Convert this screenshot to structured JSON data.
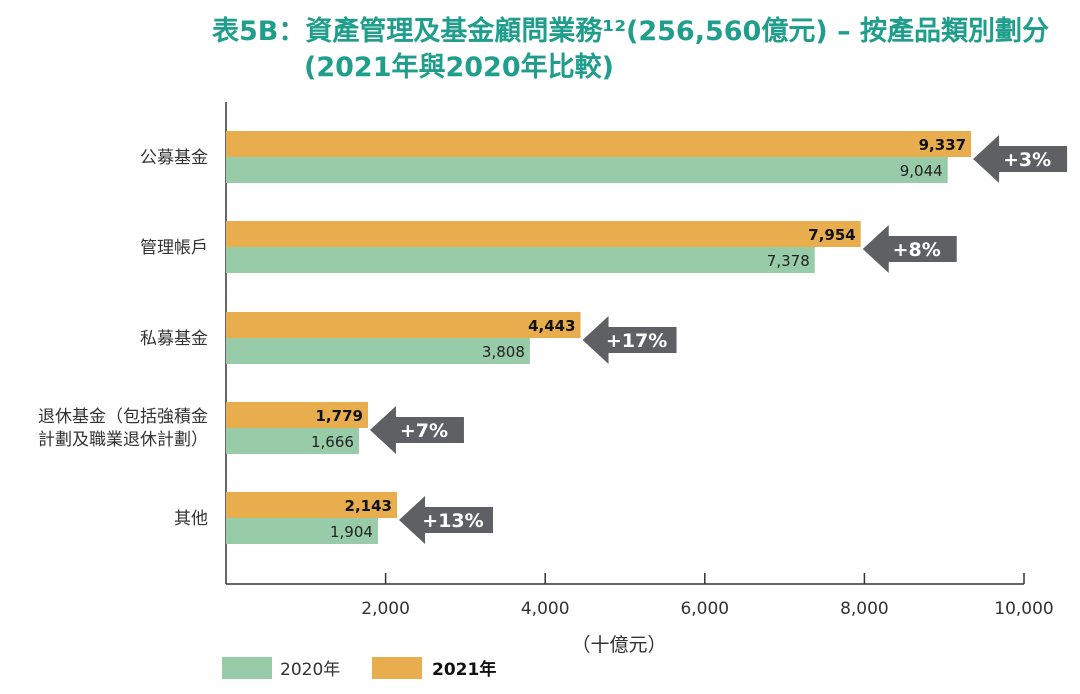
{
  "title": {
    "line1": "表5B：資產管理及基金顧問業務¹²(256,560億元) – 按產品類別劃分",
    "line2": "(2021年與2020年比較)"
  },
  "chart_data": {
    "type": "bar",
    "orientation": "horizontal",
    "categories": [
      [
        "公募基金"
      ],
      [
        "管理帳戶"
      ],
      [
        "私募基金"
      ],
      [
        "退休基金（包括強積金",
        "計劃及職業退休計劃）"
      ],
      [
        "其他"
      ]
    ],
    "series": [
      {
        "name": "2021年",
        "color": "#e8ad4d",
        "values": [
          9337,
          7954,
          4443,
          1779,
          2143
        ],
        "labels": [
          "9,337",
          "7,954",
          "4,443",
          "1,779",
          "2,143"
        ]
      },
      {
        "name": "2020年",
        "color": "#98cba7",
        "values": [
          9044,
          7378,
          3808,
          1666,
          1904
        ],
        "labels": [
          "9,044",
          "7,378",
          "3,808",
          "1,666",
          "1,904"
        ]
      }
    ],
    "changes": [
      "+3%",
      "+8%",
      "+17%",
      "+7%",
      "+13%"
    ],
    "xlim": [
      0,
      10000
    ],
    "xticks": [
      2000,
      4000,
      6000,
      8000,
      10000
    ],
    "xtick_labels": [
      "2,000",
      "4,000",
      "6,000",
      "8,000",
      "10,000"
    ],
    "xlabel": "（十億元）",
    "legend": [
      {
        "label": "2020年",
        "color": "#98cba7",
        "bold": false
      },
      {
        "label": "2021年",
        "color": "#e8ad4d",
        "bold": true
      }
    ],
    "arrow_color": "#5f6064"
  }
}
